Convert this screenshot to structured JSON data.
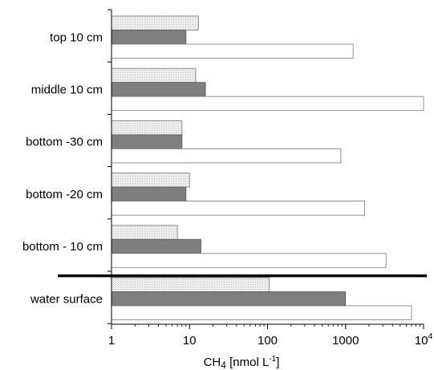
{
  "chart_data": {
    "type": "bar",
    "orientation": "horizontal",
    "x_scale": "log",
    "xlim": [
      1,
      10000
    ],
    "x_ticks": [
      {
        "value": 1,
        "base": "1",
        "exp": ""
      },
      {
        "value": 10,
        "base": "10",
        "exp": ""
      },
      {
        "value": 100,
        "base": "100",
        "exp": ""
      },
      {
        "value": 1000,
        "base": "1000",
        "exp": ""
      },
      {
        "value": 10000,
        "base": "10",
        "exp": "4"
      }
    ],
    "xlabel": {
      "pre": "CH",
      "sub": "4",
      "mid": " [nmol L",
      "sup": "-1",
      "post": "]"
    },
    "ylabel": "",
    "title": "",
    "grid": false,
    "legend": "none",
    "categories": [
      "top 10 cm",
      "middle 10 cm",
      "bottom -30 cm",
      "bottom -20 cm",
      "bottom - 10 cm",
      "water surface"
    ],
    "separator_after_category_index": 4,
    "series": [
      {
        "color": "#e6e6e6",
        "pattern": "dotted",
        "values": [
          13,
          12,
          8,
          10,
          7,
          105
        ]
      },
      {
        "color": "#7f7f7f",
        "pattern": "solid",
        "values": [
          9,
          16,
          8,
          9,
          14,
          1000
        ]
      },
      {
        "color": "#ffffff",
        "pattern": "outline",
        "values": [
          1250,
          10000,
          870,
          1750,
          3300,
          7000
        ]
      }
    ]
  }
}
